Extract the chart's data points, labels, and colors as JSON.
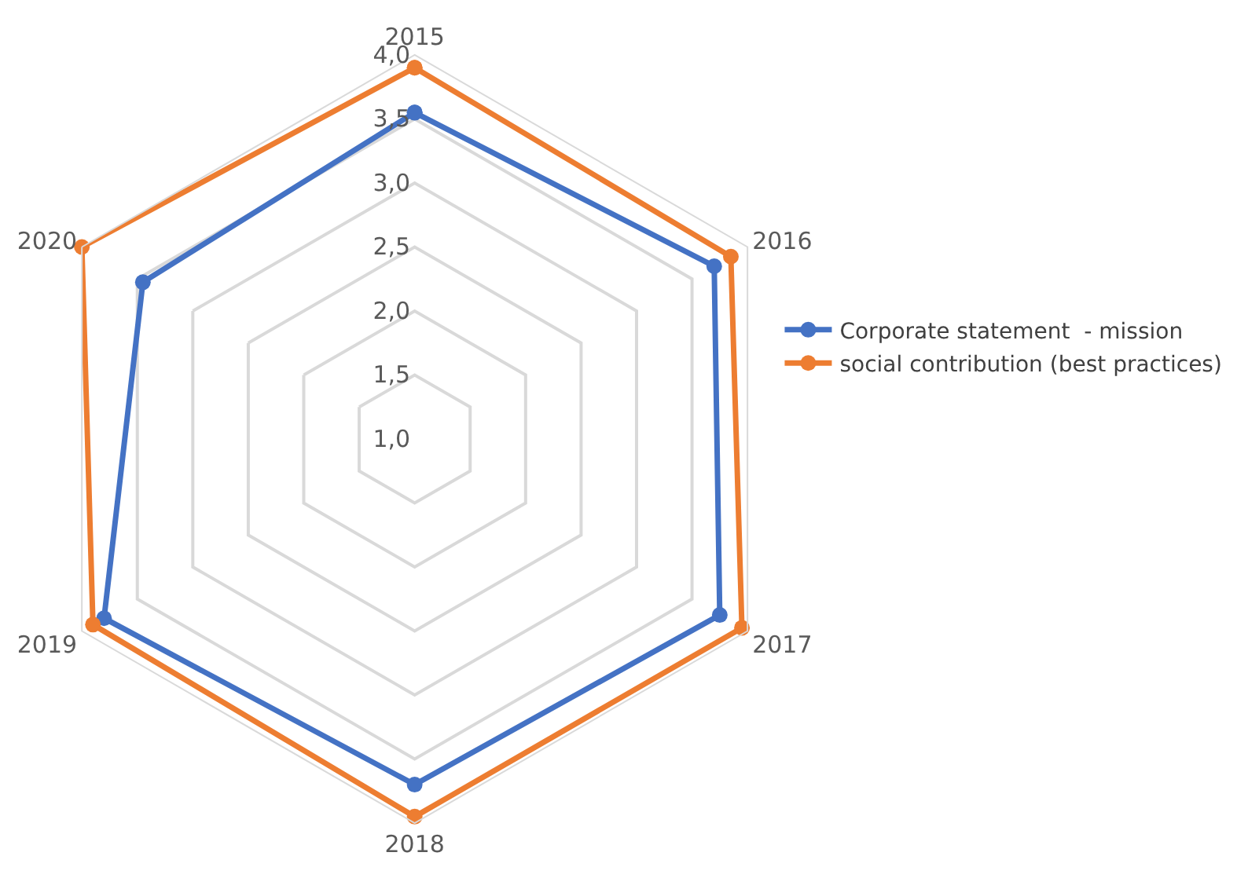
{
  "chart_data": {
    "type": "radar",
    "categories": [
      "2015",
      "2016",
      "2017",
      "2018",
      "2019",
      "2020"
    ],
    "series": [
      {
        "name": "Corporate statement  - mission",
        "color": "#4472c4",
        "values": [
          3.55,
          3.7,
          3.75,
          3.7,
          3.8,
          3.45
        ]
      },
      {
        "name": "social contribution (best practices)",
        "color": "#ed7d31",
        "values": [
          3.9,
          3.85,
          3.95,
          3.95,
          3.9,
          4.0
        ]
      }
    ],
    "ylim": [
      1,
      4
    ],
    "yticks": [
      {
        "value": 1,
        "label": "1,0"
      },
      {
        "value": 1.5,
        "label": "1,5"
      },
      {
        "value": 2,
        "label": "2,0"
      },
      {
        "value": 2.5,
        "label": "2,5"
      },
      {
        "value": 3,
        "label": "3,0"
      },
      {
        "value": 3.5,
        "label": "3,5"
      },
      {
        "value": 4,
        "label": "4,0"
      }
    ],
    "grid": true,
    "legend": "right",
    "marker": "circle",
    "line_style": "solid"
  }
}
